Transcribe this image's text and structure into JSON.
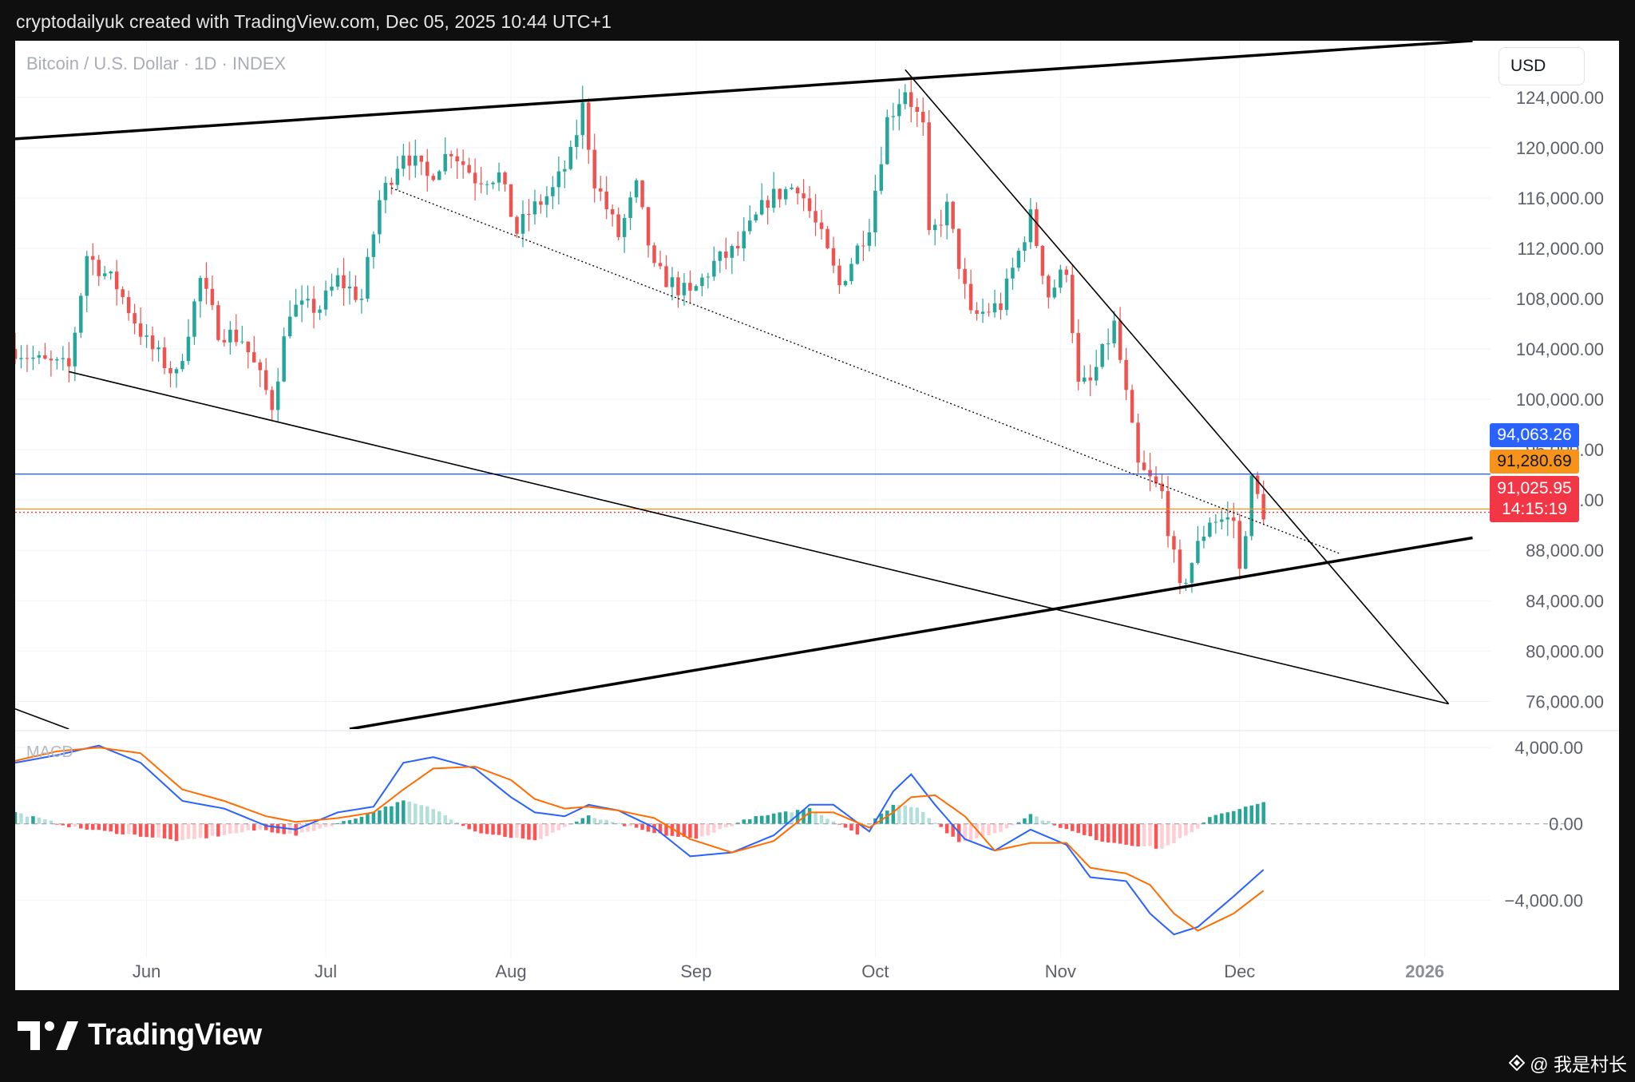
{
  "header": {
    "caption": "cryptodailyuk created with TradingView.com, Dec 05, 2025 10:44 UTC+1"
  },
  "symbol": {
    "title": "Bitcoin / U.S. Dollar · 1D · INDEX"
  },
  "currency": "USD",
  "indicator": {
    "name": "MACD"
  },
  "price_tags": {
    "blue": "94,063.26",
    "orange": "91,280.69",
    "red": "91,025.95",
    "countdown": "14:15:19"
  },
  "brand": {
    "name": "TradingView"
  },
  "watermark": {
    "text": "@ 我是村长"
  },
  "colors": {
    "up": "#26a69a",
    "down": "#ef5350",
    "hist_up_strong": "#26a69a",
    "hist_up_weak": "#b2dfdb",
    "hist_down_strong": "#ff5252",
    "hist_down_weak": "#ffcdd2",
    "macd_line": "#2962ff",
    "signal_line": "#ff6d00",
    "hline_blue": "#2962ff",
    "hline_orange": "#f7931a",
    "hline_red": "#f23645"
  },
  "chart_data": [
    {
      "type": "candlestick",
      "title": "Bitcoin / U.S. Dollar · 1D · INDEX",
      "y_ticks": [
        "76,000.00",
        "80,000.00",
        "84,000.00",
        "88,000.00",
        "92,000.00",
        "96,000.00",
        "100,000.00",
        "104,000.00",
        "108,000.00",
        "112,000.00",
        "116,000.00",
        "120,000.00",
        "124,000.00"
      ],
      "y_tick_values": [
        76000,
        80000,
        84000,
        88000,
        92000,
        96000,
        100000,
        104000,
        108000,
        112000,
        116000,
        120000,
        124000
      ],
      "ylim": [
        73800,
        128500
      ],
      "x_ticks": [
        "Jun",
        "Jul",
        "Aug",
        "Sep",
        "Oct",
        "Nov",
        "Dec",
        "2026"
      ],
      "x_tick_dates": [
        "2025-06-01",
        "2025-07-01",
        "2025-08-01",
        "2025-09-01",
        "2025-10-01",
        "2025-11-01",
        "2025-12-01",
        "2026-01-01"
      ],
      "xlim": [
        "2025-05-10",
        "2026-01-12"
      ],
      "grid": true,
      "horizontal_lines": [
        {
          "value": 94063.26,
          "color": "blue"
        },
        {
          "value": 91280.69,
          "color": "orange"
        },
        {
          "value": 91025.95,
          "color": "red",
          "dotted": true
        }
      ],
      "trendlines": [
        {
          "from": [
            "2025-05-10",
            120700
          ],
          "to": [
            "2026-01-09",
            128500
          ],
          "weight": "bold"
        },
        {
          "from": [
            "2025-10-06",
            126200
          ],
          "to": [
            "2026-01-05",
            75800
          ]
        },
        {
          "from": [
            "2025-05-19",
            102200
          ],
          "to": [
            "2026-01-05",
            75800
          ]
        },
        {
          "from": [
            "2025-07-12",
            116800
          ],
          "to": [
            "2025-12-18",
            87700
          ],
          "dotted": true
        },
        {
          "from": [
            "2025-07-05",
            73800
          ],
          "to": [
            "2026-01-09",
            89000
          ],
          "weight": "bold"
        },
        {
          "from": [
            "2025-05-10",
            75400
          ],
          "to": [
            "2025-05-19",
            73800
          ]
        }
      ],
      "keypoints": [
        [
          "2025-05-10",
          104000
        ],
        [
          "2025-05-14",
          103000
        ],
        [
          "2025-05-19",
          102500
        ],
        [
          "2025-05-22",
          111500
        ],
        [
          "2025-05-27",
          109000
        ],
        [
          "2025-06-01",
          104500
        ],
        [
          "2025-06-06",
          101800
        ],
        [
          "2025-06-10",
          109500
        ],
        [
          "2025-06-13",
          105500
        ],
        [
          "2025-06-17",
          104800
        ],
        [
          "2025-06-22",
          99600
        ],
        [
          "2025-06-25",
          107200
        ],
        [
          "2025-06-30",
          107300
        ],
        [
          "2025-07-03",
          109500
        ],
        [
          "2025-07-07",
          108000
        ],
        [
          "2025-07-10",
          115800
        ],
        [
          "2025-07-14",
          119800
        ],
        [
          "2025-07-18",
          117600
        ],
        [
          "2025-07-22",
          119900
        ],
        [
          "2025-07-26",
          117600
        ],
        [
          "2025-07-30",
          117800
        ],
        [
          "2025-08-02",
          113300
        ],
        [
          "2025-08-04",
          114800
        ],
        [
          "2025-08-08",
          116600
        ],
        [
          "2025-08-11",
          119300
        ],
        [
          "2025-08-13",
          123200
        ],
        [
          "2025-08-15",
          117400
        ],
        [
          "2025-08-19",
          113000
        ],
        [
          "2025-08-22",
          116800
        ],
        [
          "2025-08-25",
          110200
        ],
        [
          "2025-08-31",
          108200
        ],
        [
          "2025-09-04",
          110800
        ],
        [
          "2025-09-08",
          112000
        ],
        [
          "2025-09-13",
          115900
        ],
        [
          "2025-09-18",
          117100
        ],
        [
          "2025-09-22",
          112800
        ],
        [
          "2025-09-25",
          109000
        ],
        [
          "2025-09-30",
          114000
        ],
        [
          "2025-10-03",
          122200
        ],
        [
          "2025-10-06",
          124700
        ],
        [
          "2025-10-09",
          121500
        ],
        [
          "2025-10-10",
          112700
        ],
        [
          "2025-10-13",
          115200
        ],
        [
          "2025-10-17",
          106500
        ],
        [
          "2025-10-22",
          107500
        ],
        [
          "2025-10-27",
          114500
        ],
        [
          "2025-10-30",
          108300
        ],
        [
          "2025-11-02",
          110500
        ],
        [
          "2025-11-04",
          101000
        ],
        [
          "2025-11-06",
          101300
        ],
        [
          "2025-11-10",
          105900
        ],
        [
          "2025-11-14",
          94600
        ],
        [
          "2025-11-18",
          92500
        ],
        [
          "2025-11-21",
          84700
        ],
        [
          "2025-11-24",
          88300
        ],
        [
          "2025-11-26",
          90500
        ],
        [
          "2025-11-30",
          90400
        ],
        [
          "2025-12-01",
          86300
        ],
        [
          "2025-12-03",
          93400
        ],
        [
          "2025-12-05",
          91026
        ]
      ]
    },
    {
      "type": "line",
      "title": "MACD",
      "y_ticks": [
        "4,000.00",
        "0.00",
        "−4,000.00"
      ],
      "y_tick_values": [
        4000,
        0,
        -4000
      ],
      "ylim": [
        -7000,
        4800
      ],
      "series": [
        {
          "key": "macd",
          "points": [
            [
              "2025-05-10",
              3200
            ],
            [
              "2025-05-17",
              3600
            ],
            [
              "2025-05-24",
              4100
            ],
            [
              "2025-05-31",
              3200
            ],
            [
              "2025-06-07",
              1200
            ],
            [
              "2025-06-14",
              800
            ],
            [
              "2025-06-21",
              -100
            ],
            [
              "2025-06-26",
              -300
            ],
            [
              "2025-07-03",
              600
            ],
            [
              "2025-07-09",
              900
            ],
            [
              "2025-07-14",
              3200
            ],
            [
              "2025-07-19",
              3500
            ],
            [
              "2025-07-26",
              2900
            ],
            [
              "2025-08-01",
              1400
            ],
            [
              "2025-08-05",
              600
            ],
            [
              "2025-08-10",
              400
            ],
            [
              "2025-08-14",
              1000
            ],
            [
              "2025-08-19",
              700
            ],
            [
              "2025-08-25",
              -200
            ],
            [
              "2025-08-31",
              -1700
            ],
            [
              "2025-09-07",
              -1500
            ],
            [
              "2025-09-14",
              -600
            ],
            [
              "2025-09-20",
              1000
            ],
            [
              "2025-09-24",
              1000
            ],
            [
              "2025-09-30",
              -400
            ],
            [
              "2025-10-04",
              1700
            ],
            [
              "2025-10-07",
              2600
            ],
            [
              "2025-10-11",
              1000
            ],
            [
              "2025-10-16",
              -800
            ],
            [
              "2025-10-21",
              -1400
            ],
            [
              "2025-10-27",
              -300
            ],
            [
              "2025-11-02",
              -1100
            ],
            [
              "2025-11-06",
              -2800
            ],
            [
              "2025-11-12",
              -3000
            ],
            [
              "2025-11-16",
              -4700
            ],
            [
              "2025-11-20",
              -5800
            ],
            [
              "2025-11-24",
              -5400
            ],
            [
              "2025-11-30",
              -3800
            ],
            [
              "2025-12-05",
              -2400
            ]
          ]
        },
        {
          "key": "signal",
          "points": [
            [
              "2025-05-10",
              3300
            ],
            [
              "2025-05-17",
              3800
            ],
            [
              "2025-05-24",
              4000
            ],
            [
              "2025-05-31",
              3700
            ],
            [
              "2025-06-07",
              1800
            ],
            [
              "2025-06-14",
              1200
            ],
            [
              "2025-06-21",
              400
            ],
            [
              "2025-06-26",
              100
            ],
            [
              "2025-07-03",
              300
            ],
            [
              "2025-07-09",
              600
            ],
            [
              "2025-07-14",
              1800
            ],
            [
              "2025-07-19",
              2900
            ],
            [
              "2025-07-26",
              3000
            ],
            [
              "2025-08-01",
              2300
            ],
            [
              "2025-08-05",
              1300
            ],
            [
              "2025-08-10",
              800
            ],
            [
              "2025-08-14",
              900
            ],
            [
              "2025-08-19",
              700
            ],
            [
              "2025-08-25",
              300
            ],
            [
              "2025-08-31",
              -800
            ],
            [
              "2025-09-07",
              -1500
            ],
            [
              "2025-09-14",
              -900
            ],
            [
              "2025-09-20",
              600
            ],
            [
              "2025-09-24",
              600
            ],
            [
              "2025-09-30",
              -200
            ],
            [
              "2025-10-04",
              600
            ],
            [
              "2025-10-07",
              1400
            ],
            [
              "2025-10-11",
              1500
            ],
            [
              "2025-10-16",
              400
            ],
            [
              "2025-10-21",
              -1400
            ],
            [
              "2025-10-27",
              -1000
            ],
            [
              "2025-11-02",
              -1000
            ],
            [
              "2025-11-06",
              -2300
            ],
            [
              "2025-11-12",
              -2600
            ],
            [
              "2025-11-16",
              -3200
            ],
            [
              "2025-11-20",
              -4700
            ],
            [
              "2025-11-24",
              -5600
            ],
            [
              "2025-11-30",
              -4700
            ],
            [
              "2025-12-05",
              -3500
            ]
          ]
        }
      ],
      "histogram_keypoints": [
        [
          "2025-05-10",
          600
        ],
        [
          "2025-05-20",
          -200
        ],
        [
          "2025-06-07",
          -900
        ],
        [
          "2025-06-20",
          -300
        ],
        [
          "2025-06-26",
          -600
        ],
        [
          "2025-07-05",
          200
        ],
        [
          "2025-07-14",
          1200
        ],
        [
          "2025-07-19",
          800
        ],
        [
          "2025-07-26",
          -400
        ],
        [
          "2025-08-05",
          -900
        ],
        [
          "2025-08-14",
          400
        ],
        [
          "2025-08-25",
          -500
        ],
        [
          "2025-09-01",
          -800
        ],
        [
          "2025-09-10",
          300
        ],
        [
          "2025-09-20",
          800
        ],
        [
          "2025-09-28",
          -500
        ],
        [
          "2025-10-04",
          1000
        ],
        [
          "2025-10-08",
          900
        ],
        [
          "2025-10-15",
          -1000
        ],
        [
          "2025-10-22",
          -400
        ],
        [
          "2025-10-27",
          500
        ],
        [
          "2025-11-02",
          -300
        ],
        [
          "2025-11-08",
          -900
        ],
        [
          "2025-11-18",
          -1300
        ],
        [
          "2025-11-24",
          -300
        ],
        [
          "2025-11-26",
          400
        ],
        [
          "2025-12-05",
          1100
        ]
      ]
    }
  ]
}
